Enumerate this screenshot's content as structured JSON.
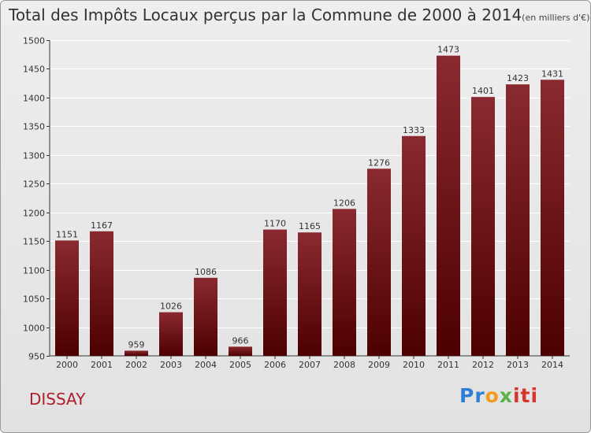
{
  "chart_data": {
    "type": "bar",
    "title": "Total des Impôts Locaux perçus par la Commune de 2000 à 2014",
    "unit_label": "(en milliers d'€)",
    "categories": [
      "2000",
      "2001",
      "2002",
      "2003",
      "2004",
      "2005",
      "2006",
      "2007",
      "2008",
      "2009",
      "2010",
      "2011",
      "2012",
      "2013",
      "2014"
    ],
    "values": [
      1151,
      1167,
      959,
      1026,
      1086,
      966,
      1170,
      1165,
      1206,
      1276,
      1333,
      1473,
      1401,
      1423,
      1431
    ],
    "ylim": [
      950,
      1500
    ],
    "yticks": [
      950,
      1000,
      1050,
      1100,
      1150,
      1200,
      1250,
      1300,
      1350,
      1400,
      1450,
      1500
    ],
    "xlabel": "",
    "ylabel": "",
    "grid": true,
    "bar_color_top": "#8a2a30",
    "bar_color_bottom": "#4d0000"
  },
  "commune": "DISSAY",
  "logo": {
    "p1": "Pr",
    "p2": "o",
    "p3": "x",
    "p4": "iti"
  }
}
